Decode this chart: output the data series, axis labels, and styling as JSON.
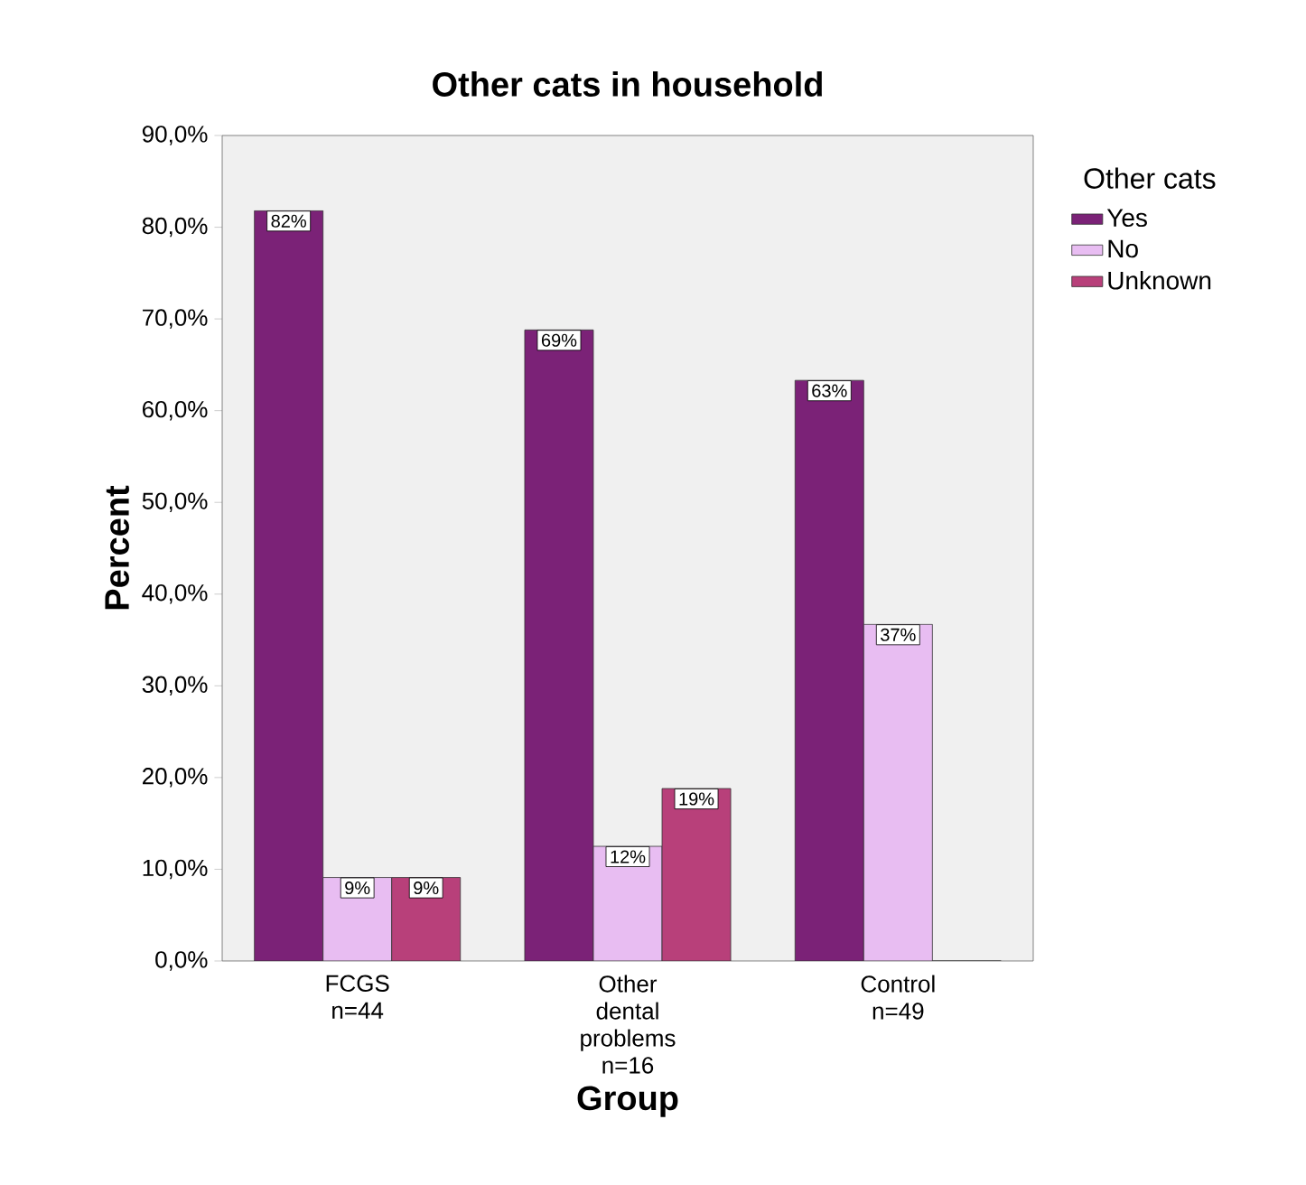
{
  "chart_data": {
    "type": "bar",
    "title": "Other cats in household",
    "xlabel": "Group",
    "ylabel": "Percent",
    "legend_title": "Other cats",
    "legend": "top right",
    "categories": [
      "FCGS n=44",
      "Other dental problems n=16",
      "Control n=49"
    ],
    "series": [
      {
        "name": "Yes",
        "color": "#7b2277",
        "values": [
          81.8,
          68.8,
          63.3
        ],
        "value_labels": [
          "82%",
          "69%",
          "63%"
        ]
      },
      {
        "name": "No",
        "color": "#e8bdf2",
        "values": [
          9.1,
          12.5,
          36.7
        ],
        "value_labels": [
          "9%",
          "12%",
          "37%"
        ]
      },
      {
        "name": "Unknown",
        "color": "#b8407a",
        "values": [
          9.1,
          18.8,
          0
        ],
        "value_labels": [
          "9%",
          "19%",
          null
        ]
      }
    ],
    "ylim": [
      0,
      90
    ],
    "yticks": [
      {
        "value": 0,
        "label": "0,0%"
      },
      {
        "value": 10,
        "label": "10,0%"
      },
      {
        "value": 20,
        "label": "20,0%"
      },
      {
        "value": 30,
        "label": "30,0%"
      },
      {
        "value": 40,
        "label": "40,0%"
      },
      {
        "value": 50,
        "label": "50,0%"
      },
      {
        "value": 60,
        "label": "60,0%"
      },
      {
        "value": 70,
        "label": "70,0%"
      },
      {
        "value": 80,
        "label": "80,0%"
      },
      {
        "value": 90,
        "label": "90,0%"
      }
    ]
  }
}
